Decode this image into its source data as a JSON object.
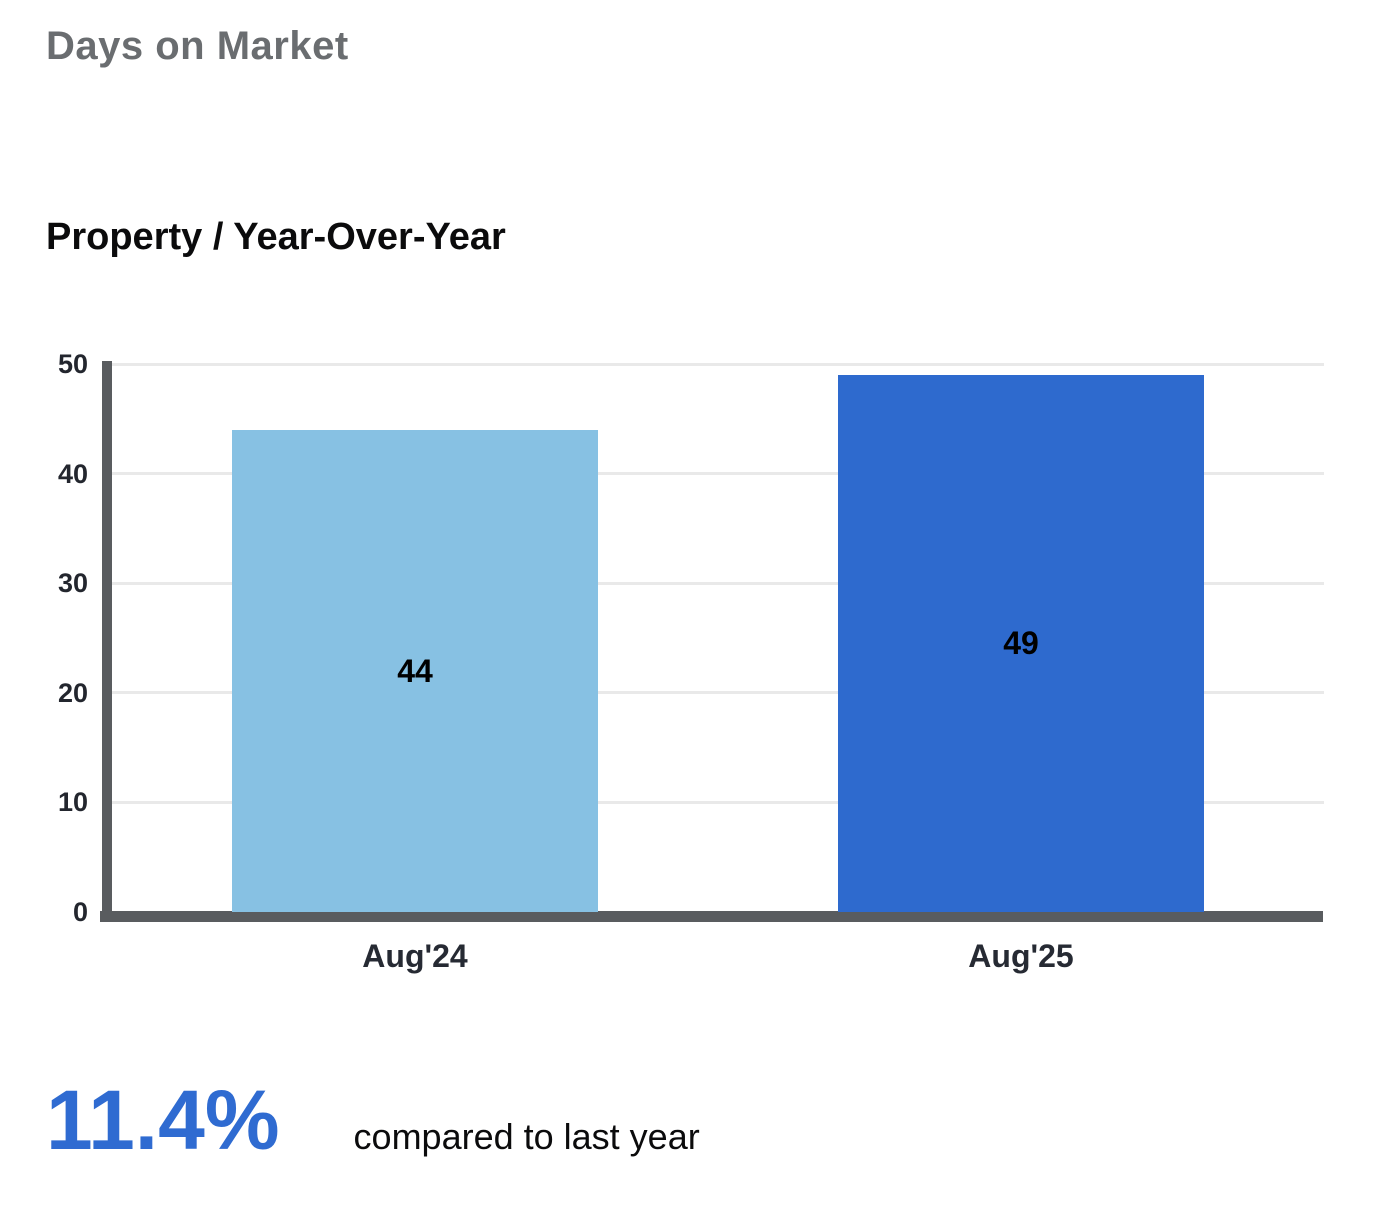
{
  "page": {
    "title": "Days on Market",
    "section_title": "Property / Year-Over-Year"
  },
  "chart_data": {
    "type": "bar",
    "title": "Days on Market",
    "subtitle": "Property / Year-Over-Year",
    "categories": [
      "Aug'24",
      "Aug'25"
    ],
    "values": [
      44,
      49
    ],
    "bar_colors": [
      "#87C1E3",
      "#2E6ACE"
    ],
    "value_labels_shown": true,
    "xlabel": "",
    "ylabel": "",
    "ylim": [
      0,
      50
    ],
    "yticks": [
      0,
      10,
      20,
      30,
      40,
      50
    ],
    "grid": true,
    "legend": "none"
  },
  "summary": {
    "percent": "11.4%",
    "caption": "compared to last year"
  },
  "colors": {
    "accent_blue": "#2F6BD1",
    "bar_light_blue": "#87C1E3",
    "bar_dark_blue": "#2E6ACE",
    "title_gray": "#6A6D70",
    "axis_gray": "#595C5F",
    "gridline_gray": "#E9E9E9",
    "tick_label_dark": "#23262E"
  }
}
